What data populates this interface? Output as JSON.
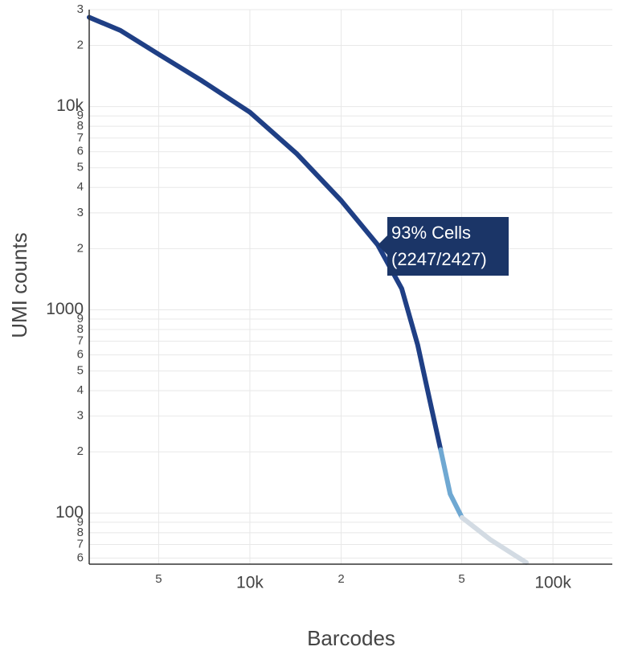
{
  "chart_data": {
    "type": "line",
    "xlabel": "Barcodes",
    "ylabel": "UMI counts",
    "log_x": true,
    "log_y": true,
    "grid": true,
    "x": [
      2950,
      3740,
      5000,
      6890,
      10000,
      14300,
      20000,
      26400,
      31700,
      35800,
      39300,
      42600,
      45800,
      50100,
      62100,
      81700
    ],
    "series": [
      {
        "color": "#1f3f85",
        "values": [
          27500,
          23700,
          18100,
          13500,
          9380,
          5850,
          3450,
          2090,
          1270,
          670,
          354,
          205,
          null,
          null,
          null,
          null
        ]
      },
      {
        "color": "#6fa8d2",
        "values": [
          null,
          null,
          null,
          null,
          null,
          null,
          null,
          null,
          null,
          null,
          null,
          205,
          124,
          95,
          null,
          null
        ]
      },
      {
        "color": "#d3dbe3",
        "values": [
          null,
          null,
          null,
          null,
          null,
          null,
          null,
          null,
          null,
          null,
          null,
          null,
          null,
          95,
          74,
          57
        ]
      }
    ],
    "xlim": [
      2950,
      157000
    ],
    "ylim": [
      56,
      30000
    ],
    "xticks": [
      {
        "value": 5000,
        "label": "5"
      },
      {
        "value": 10000,
        "label": "10k"
      },
      {
        "value": 20000,
        "label": "2"
      },
      {
        "value": 50000,
        "label": "5"
      },
      {
        "value": 100000,
        "label": "100k"
      }
    ],
    "yticks": [
      {
        "value": 60,
        "label": "6"
      },
      {
        "value": 70,
        "label": "7"
      },
      {
        "value": 80,
        "label": "8"
      },
      {
        "value": 90,
        "label": "9"
      },
      100,
      {
        "value": 200,
        "label": "2"
      },
      {
        "value": 300,
        "label": "3"
      },
      {
        "value": 400,
        "label": "4"
      },
      {
        "value": 500,
        "label": "5"
      },
      {
        "value": 600,
        "label": "6"
      },
      {
        "value": 700,
        "label": "7"
      },
      {
        "value": 800,
        "label": "8"
      },
      {
        "value": 900,
        "label": "9"
      },
      1000,
      {
        "value": 2000,
        "label": "2"
      },
      {
        "value": 3000,
        "label": "3"
      },
      {
        "value": 4000,
        "label": "4"
      },
      {
        "value": 5000,
        "label": "5"
      },
      {
        "value": 6000,
        "label": "6"
      },
      {
        "value": 7000,
        "label": "7"
      },
      {
        "value": 8000,
        "label": "8"
      },
      {
        "value": 9000,
        "label": "9"
      },
      {
        "value": 10000,
        "label": "10k"
      },
      {
        "value": 20000,
        "label": "2"
      },
      {
        "value": 30000,
        "label": "3"
      }
    ],
    "annotation": {
      "lines": [
        "93% Cells",
        "(2247/2427)"
      ],
      "color": "#1b3567"
    }
  }
}
